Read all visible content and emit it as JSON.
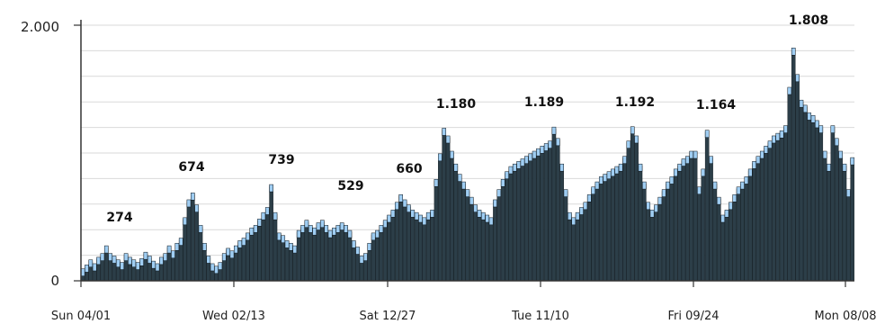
{
  "chart_data": {
    "type": "bar",
    "ylim": [
      0,
      2000
    ],
    "y_ticks": [
      {
        "value": 0,
        "label": "0"
      },
      {
        "value": 2000,
        "label": "2.000"
      }
    ],
    "x_ticks": [
      "Sun 04/01",
      "Wed 02/13",
      "Sat 12/27",
      "Tue 11/10",
      "Fri 09/24",
      "Mon 08/08"
    ],
    "grid": true,
    "colors": {
      "bar": "#2c3e48",
      "bar_top": "#9fcdf2",
      "edge": "#0c141a",
      "grid": "#d9d9d9",
      "axis": "#333333"
    },
    "annotations": [
      {
        "label": "274",
        "value": 274
      },
      {
        "label": "674",
        "value": 674
      },
      {
        "label": "739",
        "value": 739
      },
      {
        "label": "529",
        "value": 529
      },
      {
        "label": "660",
        "value": 660
      },
      {
        "label": "1.180",
        "value": 1180
      },
      {
        "label": "1.189",
        "value": 1189
      },
      {
        "label": "1.192",
        "value": 1192
      },
      {
        "label": "1.164",
        "value": 1164
      },
      {
        "label": "1.808",
        "value": 1808
      }
    ],
    "values": [
      80,
      110,
      150,
      120,
      170,
      200,
      260,
      200,
      180,
      150,
      130,
      200,
      170,
      150,
      130,
      160,
      210,
      180,
      140,
      120,
      170,
      200,
      260,
      220,
      280,
      320,
      480,
      620,
      674,
      580,
      420,
      280,
      180,
      120,
      100,
      130,
      200,
      240,
      220,
      260,
      300,
      320,
      360,
      400,
      420,
      470,
      520,
      560,
      739,
      520,
      360,
      340,
      300,
      280,
      260,
      380,
      420,
      460,
      420,
      400,
      440,
      460,
      420,
      380,
      400,
      420,
      440,
      420,
      380,
      300,
      250,
      180,
      200,
      280,
      360,
      380,
      420,
      460,
      500,
      540,
      600,
      660,
      620,
      580,
      540,
      520,
      500,
      480,
      520,
      540,
      780,
      980,
      1180,
      1120,
      1000,
      900,
      820,
      760,
      700,
      640,
      580,
      540,
      520,
      500,
      480,
      620,
      700,
      780,
      840,
      880,
      900,
      920,
      940,
      960,
      980,
      1000,
      1020,
      1040,
      1060,
      1080,
      1189,
      1100,
      900,
      700,
      520,
      480,
      520,
      560,
      600,
      660,
      720,
      760,
      800,
      820,
      840,
      860,
      880,
      900,
      960,
      1080,
      1192,
      1120,
      900,
      760,
      600,
      540,
      580,
      640,
      700,
      760,
      800,
      860,
      900,
      940,
      960,
      1000,
      1000,
      720,
      860,
      1164,
      960,
      760,
      640,
      500,
      540,
      600,
      660,
      720,
      760,
      800,
      860,
      920,
      960,
      1000,
      1040,
      1080,
      1120,
      1140,
      1160,
      1200,
      1500,
      1808,
      1600,
      1400,
      1360,
      1300,
      1280,
      1240,
      1200,
      1000,
      900,
      1200,
      1100,
      1000,
      900,
      700,
      950
    ]
  }
}
